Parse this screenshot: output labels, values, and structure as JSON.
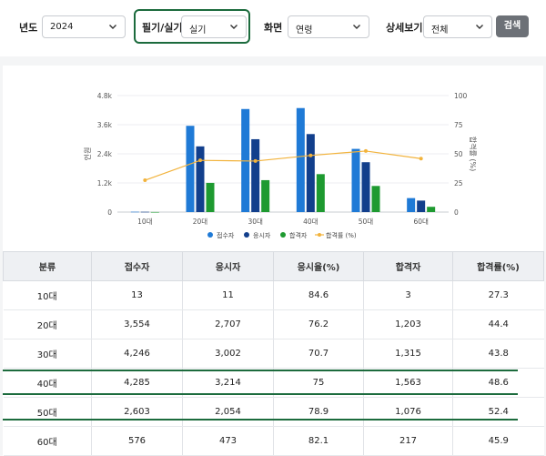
{
  "filters": {
    "year_label": "년도",
    "year_value": "2024",
    "exam_type_label": "필기/실기",
    "exam_type_value": "실기",
    "view_label": "화면",
    "view_value": "연령",
    "detail_label": "상세보기",
    "detail_value": "전체",
    "search_button": "검색"
  },
  "chart_data": {
    "type": "bar",
    "categories": [
      "10대",
      "20대",
      "30대",
      "40대",
      "50대",
      "60대"
    ],
    "series": [
      {
        "name": "접수자",
        "kind": "bar",
        "color": "#1f7ad6",
        "values": [
          13,
          3554,
          4246,
          4285,
          2603,
          576
        ]
      },
      {
        "name": "응시자",
        "kind": "bar",
        "color": "#123f8c",
        "values": [
          11,
          2707,
          3002,
          3214,
          2054,
          473
        ]
      },
      {
        "name": "합격자",
        "kind": "bar",
        "color": "#1e9a30",
        "values": [
          3,
          1203,
          1315,
          1563,
          1076,
          217
        ]
      },
      {
        "name": "합격률 (%)",
        "kind": "line",
        "axis": "right",
        "color": "#f2b33c",
        "values": [
          27.3,
          44.4,
          43.8,
          48.6,
          52.4,
          45.9
        ]
      }
    ],
    "ylabel": "인원",
    "y2label": "합격률 (%)",
    "ylim": [
      0,
      4800
    ],
    "y2lim": [
      0,
      100
    ],
    "yticks": [
      "0",
      "1.2k",
      "2.4k",
      "3.6k",
      "4.8k"
    ],
    "y2ticks": [
      "0",
      "25",
      "50",
      "75",
      "100"
    ],
    "legend_position": "bottom"
  },
  "table": {
    "headers": [
      "분류",
      "접수자",
      "응시자",
      "응시율(%)",
      "합격자",
      "합격률(%)"
    ],
    "rows": [
      [
        "10대",
        "13",
        "11",
        "84.6",
        "3",
        "27.3"
      ],
      [
        "20대",
        "3,554",
        "2,707",
        "76.2",
        "1,203",
        "44.4"
      ],
      [
        "30대",
        "4,246",
        "3,002",
        "70.7",
        "1,315",
        "43.8"
      ],
      [
        "40대",
        "4,285",
        "3,214",
        "75",
        "1,563",
        "48.6"
      ],
      [
        "50대",
        "2,603",
        "2,054",
        "78.9",
        "1,076",
        "52.4"
      ],
      [
        "60대",
        "576",
        "473",
        "82.1",
        "217",
        "45.9"
      ]
    ]
  }
}
